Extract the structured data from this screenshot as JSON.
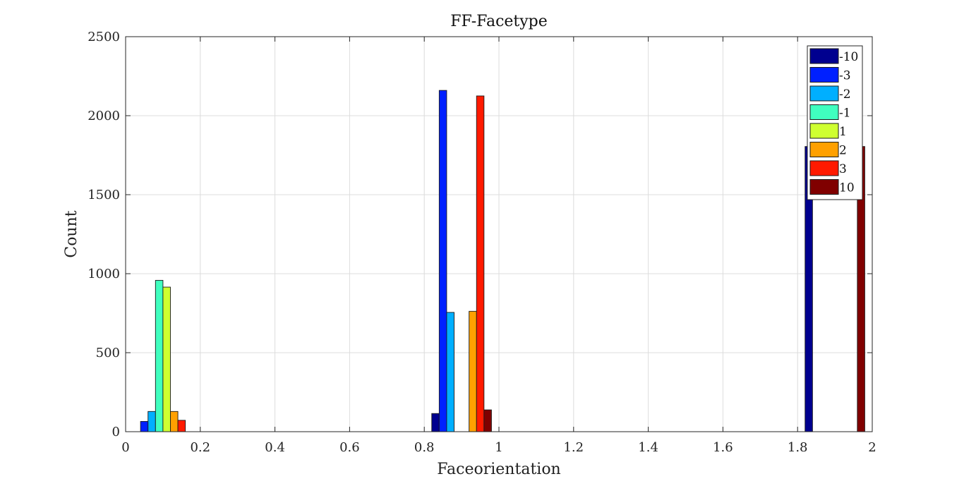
{
  "chart_data": {
    "type": "bar",
    "title": "FF-Facetype",
    "xlabel": "Faceorientation",
    "ylabel": "Count",
    "xlim": [
      0,
      2
    ],
    "ylim": [
      0,
      2500
    ],
    "xticks": [
      0,
      0.2,
      0.4,
      0.6,
      0.8,
      1,
      1.2,
      1.4,
      1.6,
      1.8,
      2
    ],
    "xtick_labels": [
      "0",
      "0.2",
      "0.4",
      "0.6",
      "0.8",
      "1",
      "1.2",
      "1.4",
      "1.6",
      "1.8",
      "2"
    ],
    "yticks": [
      0,
      500,
      1000,
      1500,
      2000,
      2500
    ],
    "ytick_labels": [
      "0",
      "500",
      "1000",
      "1500",
      "2000",
      "2500"
    ],
    "grid": true,
    "legend_position": "top-right",
    "bin_centers": [
      0.1,
      0.3,
      0.5,
      0.7,
      0.9,
      1.1,
      1.3,
      1.5,
      1.7,
      1.9
    ],
    "series": [
      {
        "name": "-10",
        "color": "#00008f",
        "values": [
          0,
          0,
          0,
          0,
          115,
          0,
          0,
          0,
          0,
          1805
        ]
      },
      {
        "name": "-3",
        "color": "#0020ff",
        "values": [
          65,
          0,
          0,
          0,
          2160,
          0,
          0,
          0,
          0,
          0
        ]
      },
      {
        "name": "-2",
        "color": "#00afff",
        "values": [
          128,
          0,
          0,
          0,
          755,
          0,
          0,
          0,
          0,
          0
        ]
      },
      {
        "name": "-1",
        "color": "#40ffbf",
        "values": [
          958,
          0,
          0,
          0,
          0,
          0,
          0,
          0,
          0,
          0
        ]
      },
      {
        "name": "1",
        "color": "#cfff30",
        "values": [
          915,
          0,
          0,
          0,
          0,
          0,
          0,
          0,
          0,
          0
        ]
      },
      {
        "name": "2",
        "color": "#ffa000",
        "values": [
          128,
          0,
          0,
          0,
          762,
          0,
          0,
          0,
          0,
          0
        ]
      },
      {
        "name": "3",
        "color": "#ff1a00",
        "values": [
          72,
          0,
          0,
          0,
          2125,
          0,
          0,
          0,
          0,
          0
        ]
      },
      {
        "name": "10",
        "color": "#800000",
        "values": [
          0,
          0,
          0,
          0,
          138,
          0,
          0,
          0,
          0,
          1805
        ]
      }
    ]
  }
}
